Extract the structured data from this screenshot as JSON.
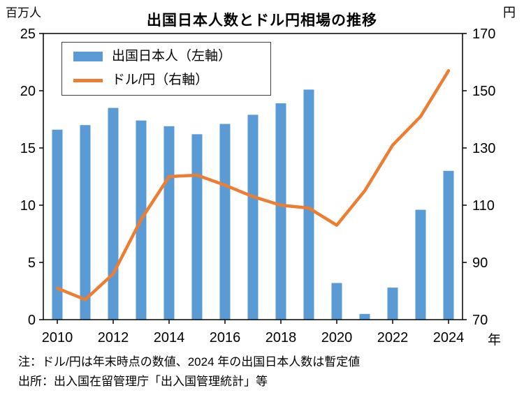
{
  "page": {
    "background": "#ffffff"
  },
  "chart_data": {
    "type": "bar",
    "subtype": "bar+line dual axis",
    "title": "出国日本人数とドル円相場の推移",
    "left_axis_unit": "百万人",
    "right_axis_unit": "円",
    "x_axis_unit": "年",
    "years": [
      2010,
      2011,
      2012,
      2013,
      2014,
      2015,
      2016,
      2017,
      2018,
      2019,
      2020,
      2021,
      2022,
      2023,
      2024
    ],
    "x_tick_labels": [
      "2010",
      "2012",
      "2014",
      "2016",
      "2018",
      "2020",
      "2022",
      "2024"
    ],
    "left_axis": {
      "min": 0,
      "max": 25,
      "ticks": [
        0,
        5,
        10,
        15,
        20,
        25
      ]
    },
    "right_axis": {
      "min": 70,
      "max": 170,
      "ticks": [
        70,
        90,
        110,
        130,
        150,
        170
      ]
    },
    "grid": false,
    "legend_position": "upper-left-inside",
    "series": [
      {
        "name": "出国日本人（左軸）",
        "type": "bar",
        "axis": "left",
        "color": "#5B9BD5",
        "values": [
          16.6,
          17.0,
          18.5,
          17.4,
          16.9,
          16.2,
          17.1,
          17.9,
          18.9,
          20.1,
          3.2,
          0.5,
          2.8,
          9.6,
          13.0
        ]
      },
      {
        "name": "ドル/円（右軸）",
        "type": "line",
        "axis": "right",
        "color": "#ED7D31",
        "values": [
          81,
          77,
          86,
          105,
          120,
          120.5,
          117,
          113,
          110,
          109,
          103,
          115,
          131,
          141,
          157
        ]
      }
    ]
  },
  "notes": {
    "line1": "注：ドル/円は年末時点の数値、2024 年の出国日本人数は暫定値",
    "line2": "出所：出入国在留管理庁「出入国管理統計」等"
  }
}
